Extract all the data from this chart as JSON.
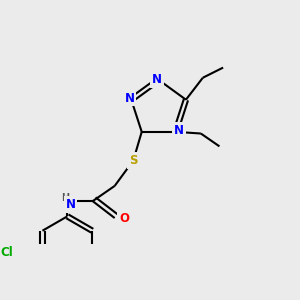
{
  "background_color": "#ebebeb",
  "bond_color": "#000000",
  "atom_colors": {
    "N": "#0000ff",
    "S": "#b8a000",
    "O": "#ff0000",
    "Cl": "#00aa00",
    "F": "#cc44aa",
    "C": "#000000",
    "H": "#555555"
  },
  "font_size": 8.5,
  "fig_width": 3.0,
  "fig_height": 3.0,
  "dpi": 100
}
